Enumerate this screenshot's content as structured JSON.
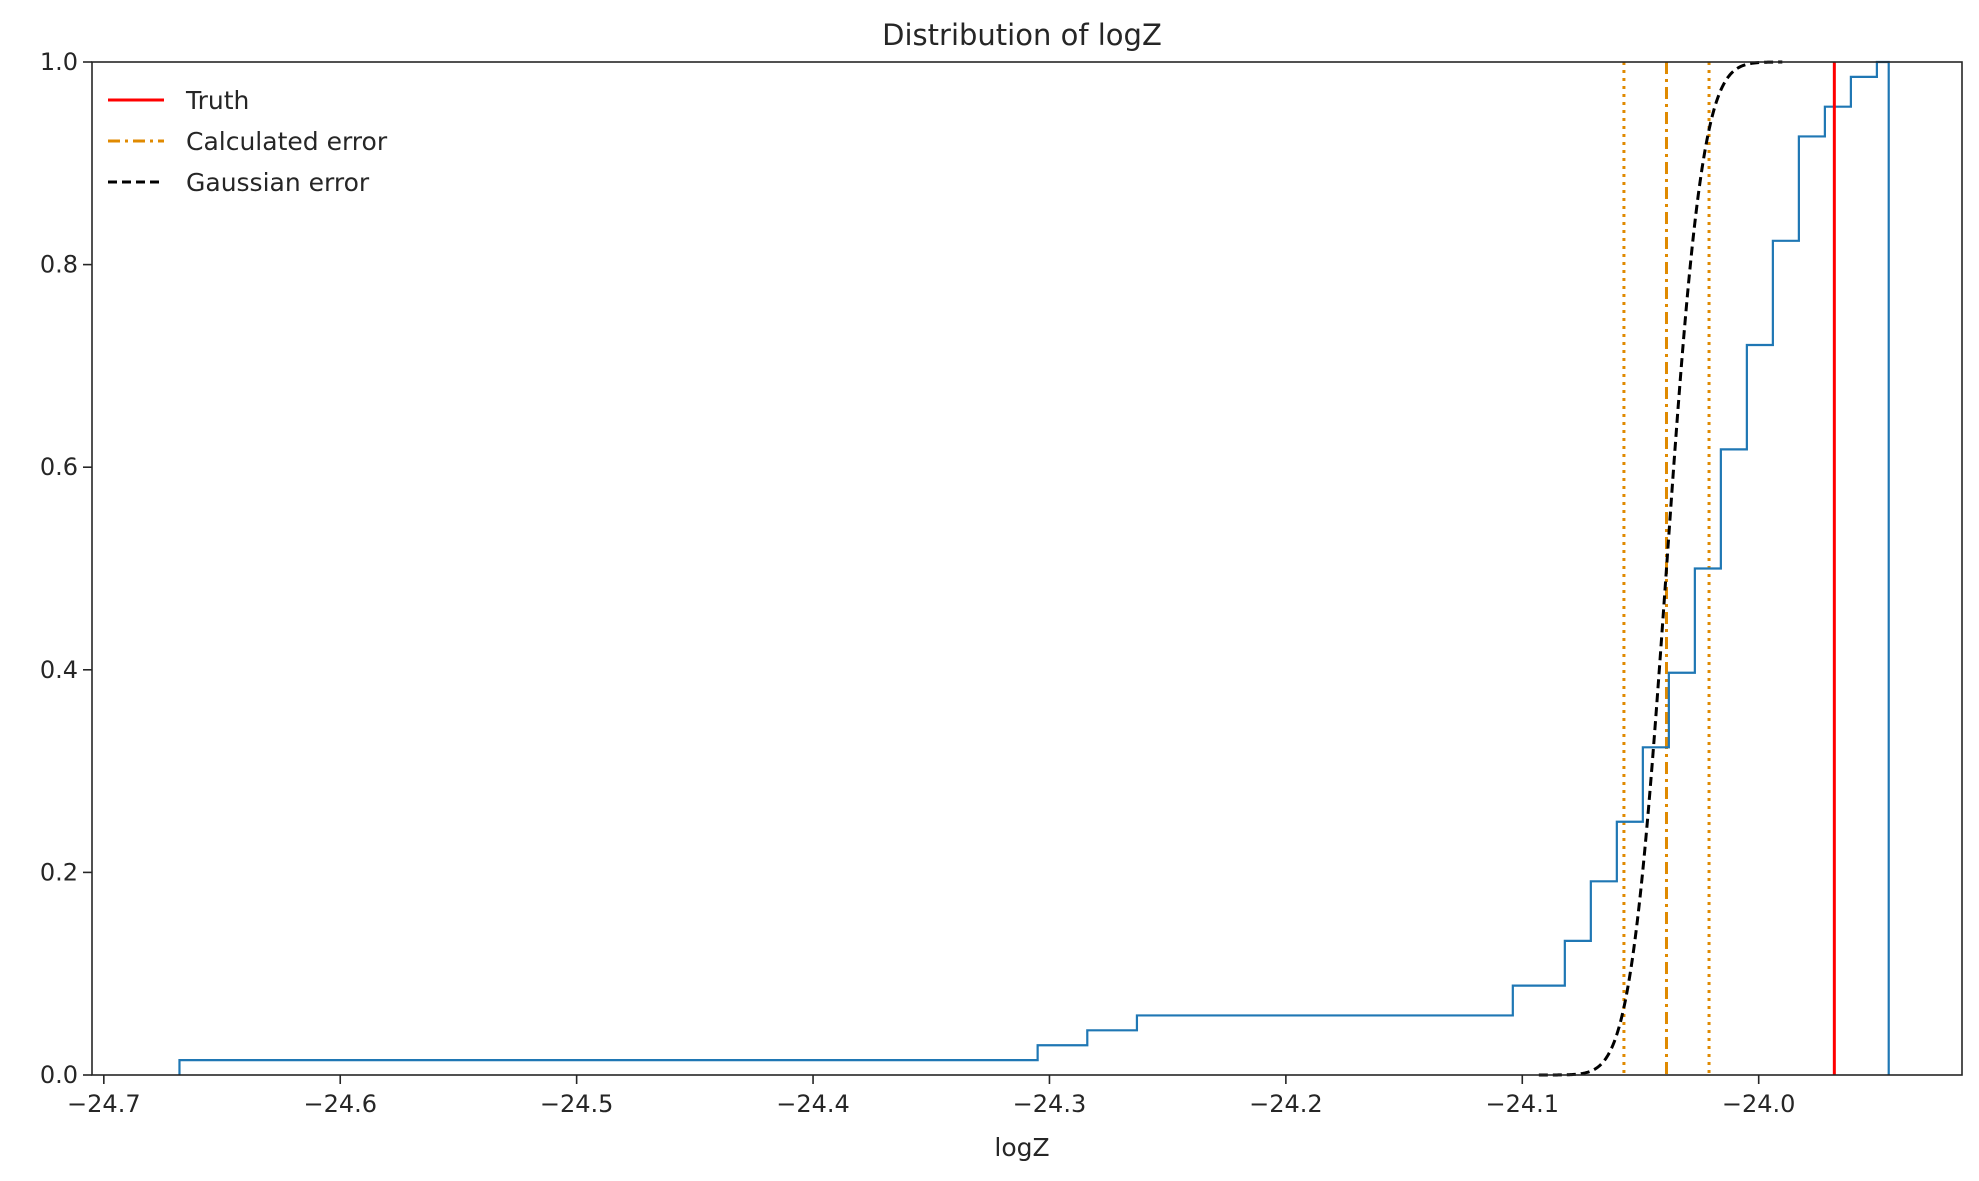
{
  "chart_data": {
    "type": "step",
    "title": "Distribution of logZ",
    "xlabel": "logZ",
    "ylabel": "",
    "xlim": [
      -24.705,
      -23.914
    ],
    "ylim": [
      0.0,
      1.0
    ],
    "grid": false,
    "legend_placement": "top-left",
    "x_ticks": [
      -24.7,
      -24.6,
      -24.5,
      -24.4,
      -24.3,
      -24.2,
      -24.1,
      -24.0
    ],
    "x_tick_labels": [
      "−24.7",
      "−24.6",
      "−24.5",
      "−24.4",
      "−24.3",
      "−24.2",
      "−24.1",
      "−24.0"
    ],
    "y_ticks": [
      0.0,
      0.2,
      0.4,
      0.6,
      0.8,
      1.0
    ],
    "y_tick_labels": [
      "0.0",
      "0.2",
      "0.4",
      "0.6",
      "0.8",
      "1.0"
    ],
    "series": [
      {
        "name": "",
        "kind": "ecdf",
        "color": "#1f77b4",
        "x": [
          -24.668,
          -24.305,
          -24.284,
          -24.263,
          -24.104,
          -24.082,
          -24.071,
          -24.06,
          -24.049,
          -24.038,
          -24.027,
          -24.016,
          -24.005,
          -23.994,
          -23.983,
          -23.972,
          -23.961,
          -23.95,
          -23.945
        ],
        "y": [
          0.0147,
          0.0294,
          0.0441,
          0.0588,
          0.0882,
          0.1324,
          0.1912,
          0.25,
          0.3235,
          0.3971,
          0.5,
          0.6176,
          0.7206,
          0.8235,
          0.9265,
          0.9559,
          0.9853,
          1.0,
          0.0
        ]
      },
      {
        "name": "Truth",
        "kind": "vline",
        "color": "#ff0000",
        "x": -23.968
      },
      {
        "name": "Calculated error",
        "kind": "vline",
        "color": "#e08a00",
        "x": -24.039,
        "band": [
          -24.057,
          -24.021
        ]
      },
      {
        "name": "Gaussian error",
        "kind": "curve",
        "color": "#000000",
        "mean": -24.039,
        "sigma": 0.012,
        "x_range": [
          -24.093,
          -23.99
        ]
      }
    ],
    "legend": [
      "Truth",
      "Calculated error",
      "Gaussian error"
    ]
  }
}
